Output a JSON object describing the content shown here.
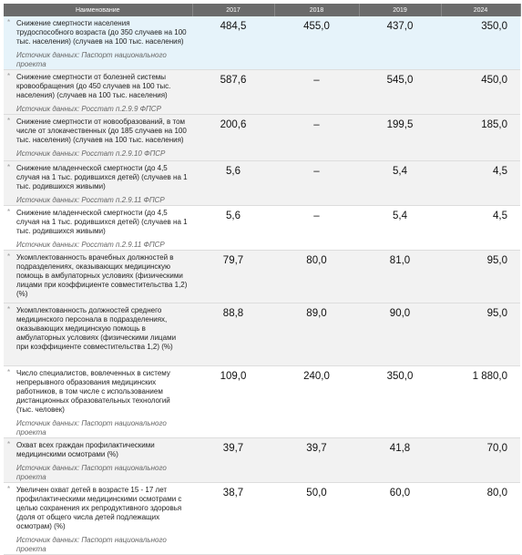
{
  "header": {
    "columns": [
      "Наименование",
      "2017",
      "2018",
      "2019",
      "2024"
    ]
  },
  "table": {
    "rows": [
      {
        "name": "Снижение смертности населения трудоспособного возраста (до 350 случаев на 100 тыс. населения) (случаев на 100 тыс. населения)",
        "source": "Источник данных: Паспорт национального проекта",
        "values": [
          "484,5",
          "455,0",
          "437,0",
          "350,0"
        ]
      },
      {
        "name": "Снижение смертности от болезней системы кровообращения (до 450 случаев на 100 тыс. населения) (случаев на 100 тыс. населения)",
        "source": "Источник данных: Росстат п.2.9.9 ФПСР",
        "values": [
          "587,6",
          "–",
          "545,0",
          "450,0"
        ]
      },
      {
        "name": "Снижение смертности от новообразований, в том числе от злокачественных (до 185 случаев на 100 тыс. населения) (случаев на 100 тыс. населения)",
        "source": "Источник данных: Росстат п.2.9.10 ФПСР",
        "values": [
          "200,6",
          "–",
          "199,5",
          "185,0"
        ]
      },
      {
        "name": "Снижение младенческой смертности (до 4,5 случая на 1 тыс. родившихся детей) (случаев на 1 тыс. родившихся живыми)",
        "source": "Источник данных: Росстат п.2.9.11 ФПСР",
        "values": [
          "5,6",
          "–",
          "5,4",
          "4,5"
        ]
      },
      {
        "name": "Снижение младенческой смертности (до 4,5 случая на 1 тыс. родившихся детей) (случаев на 1 тыс. родившихся живыми)",
        "source": "Источник данных: Росстат п.2.9.11 ФПСР",
        "values": [
          "5,6",
          "–",
          "5,4",
          "4,5"
        ]
      },
      {
        "name": "Укомплектованность врачебных должностей в подразделениях, оказывающих медицинскую помощь в амбулаторных условиях (физическими лицами при коэффициенте совместительства 1,2) (%)",
        "values": [
          "79,7",
          "80,0",
          "81,0",
          "95,0"
        ]
      },
      {
        "name": "Укомплектованность должностей среднего медицинского персонала в подразделениях, оказывающих медицинскую помощь в амбулаторных условиях (физическими лицами при коэффициенте совместительства 1,2) (%)",
        "values": [
          "88,8",
          "89,0",
          "90,0",
          "95,0"
        ]
      },
      {
        "name": "Число специалистов, вовлеченных в систему непрерывного образования медицинских работников, в том числе с использованием дистанционных образовательных технологий (тыс. человек)",
        "source": "Источник данных: Паспорт национального проекта",
        "values": [
          "109,0",
          "240,0",
          "350,0",
          "1 880,0"
        ]
      },
      {
        "name": "Охват всех граждан профилактическими медицинскими осмотрами (%)",
        "source": "Источник данных: Паспорт национального проекта",
        "values": [
          "39,7",
          "39,7",
          "41,8",
          "70,0"
        ]
      },
      {
        "name": "Увеличен охват детей в возрасте 15 - 17 лет профилактическими медицинскими осмотрами с целью сохранения их репродуктивного здоровья (доля от общего числа детей подлежащих осмотрам) (%)",
        "source": "Источник данных: Паспорт национального проекта",
        "values": [
          "38,7",
          "50,0",
          "60,0",
          "80,0"
        ]
      }
    ]
  }
}
